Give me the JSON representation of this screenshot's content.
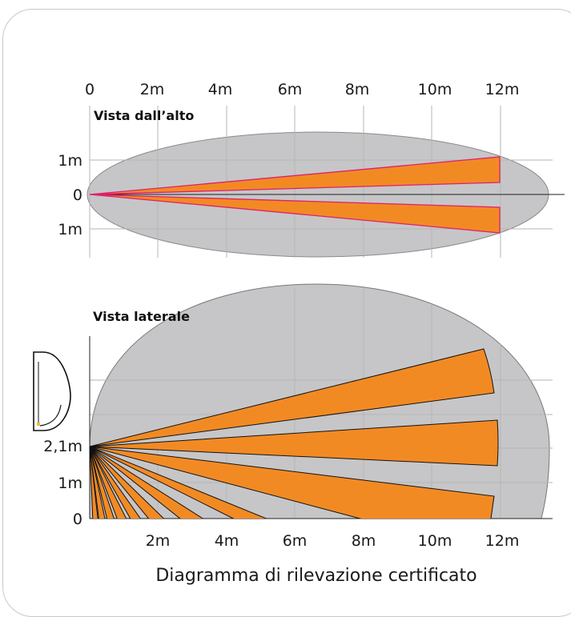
{
  "top_view": {
    "title": "Vista dall’alto",
    "x_ticks": [
      "0",
      "2m",
      "4m",
      "6m",
      "8m",
      "10m",
      "12m"
    ],
    "y_ticks": [
      "1m",
      "0",
      "1m"
    ]
  },
  "side_view": {
    "title": "Vista laterale",
    "x_ticks": [
      "2m",
      "4m",
      "6m",
      "8m",
      "10m",
      "12m"
    ],
    "y_ticks": [
      "2,1m",
      "1m",
      "0"
    ]
  },
  "caption": "Diagramma di rilevazione certificato",
  "colors": {
    "beam_fill": "#f28a24",
    "beam_edge_top": "#e0206b",
    "beam_edge_side": "#111111",
    "coverage_fill": "#c6c6c8",
    "coverage_stroke": "#8a8a8a",
    "grid": "#b5b5b5",
    "card_border": "#c8c8c8"
  }
}
